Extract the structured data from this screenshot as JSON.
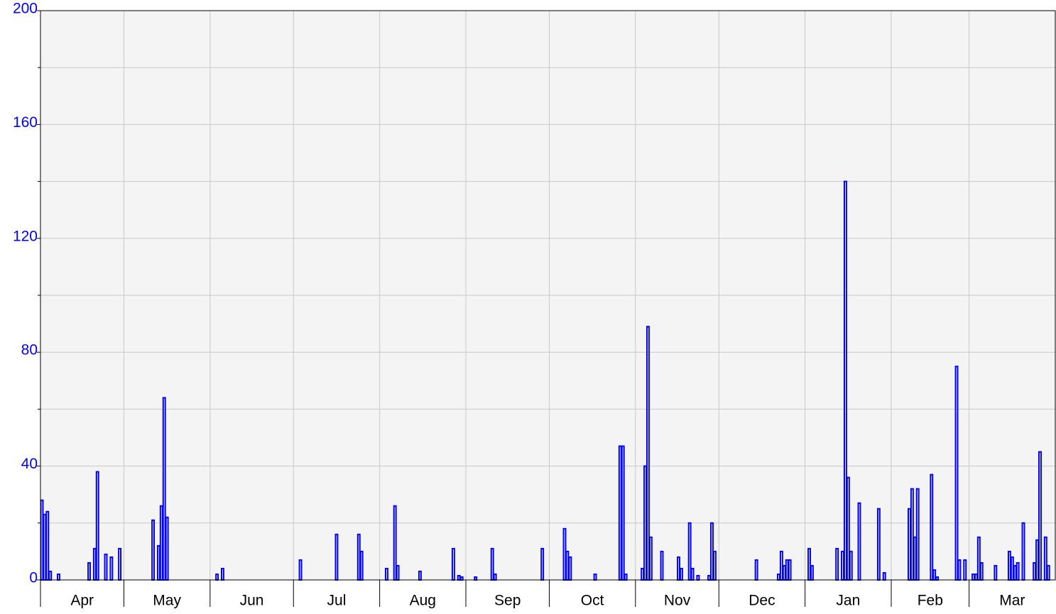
{
  "chart_data": {
    "type": "bar",
    "color": "#0000ff",
    "grid": true,
    "categories": [
      "Apr",
      "May",
      "Jun",
      "Jul",
      "Aug",
      "Sep",
      "Oct",
      "Nov",
      "Dec",
      "Jan",
      "Feb",
      "Mar"
    ],
    "values": [
      [
        28,
        23,
        24,
        3,
        0,
        0,
        2,
        0,
        0,
        0,
        0,
        0,
        0,
        0,
        0,
        0,
        0,
        6,
        0,
        11,
        38,
        0,
        0,
        9,
        0,
        8,
        0,
        0,
        11,
        0
      ],
      [
        0,
        0,
        0,
        0,
        0,
        0,
        0,
        0,
        0,
        0,
        21,
        0,
        12,
        26,
        64,
        22,
        0,
        0,
        0,
        0,
        0,
        0,
        0,
        0,
        0,
        0,
        0,
        0,
        0,
        0,
        0
      ],
      [
        0,
        0,
        2,
        0,
        4,
        0,
        0,
        0,
        0,
        0,
        0,
        0,
        0,
        0,
        0,
        0,
        0,
        0,
        0,
        0,
        0,
        0,
        0,
        0,
        0,
        0,
        0,
        0,
        0,
        0
      ],
      [
        0,
        0,
        7,
        0,
        0,
        0,
        0,
        0,
        0,
        0,
        0,
        0,
        0,
        0,
        0,
        16,
        0,
        0,
        0,
        0,
        0,
        0,
        0,
        16,
        10,
        0,
        0,
        0,
        0,
        0,
        0
      ],
      [
        0,
        0,
        4,
        0,
        0,
        26,
        5,
        0,
        0,
        0,
        0,
        0,
        0,
        0,
        3,
        0,
        0,
        0,
        0,
        0,
        0,
        0,
        0,
        0,
        0,
        0,
        11,
        0,
        1.5,
        1,
        0
      ],
      [
        0,
        0,
        0,
        1,
        0,
        0,
        0,
        0,
        0,
        11,
        2,
        0,
        0,
        0,
        0,
        0,
        0,
        0,
        0,
        0,
        0,
        0,
        0,
        0,
        0,
        0,
        0,
        11,
        0,
        0
      ],
      [
        0,
        0,
        0,
        0,
        0,
        18,
        10,
        8,
        0,
        0,
        0,
        0,
        0,
        0,
        0,
        0,
        2,
        0,
        0,
        0,
        0,
        0,
        0,
        0,
        0,
        47,
        47,
        2,
        0,
        0,
        0
      ],
      [
        0,
        0,
        4,
        40,
        89,
        15,
        0,
        0,
        0,
        10,
        0,
        0,
        0,
        0,
        0,
        8,
        4,
        0,
        0,
        20,
        4,
        0,
        1.5,
        0,
        0,
        0,
        1.5,
        20,
        10,
        0
      ],
      [
        0,
        0,
        0,
        0,
        0,
        0,
        0,
        0,
        0,
        0,
        0,
        0,
        0,
        7,
        0,
        0,
        0,
        0,
        0,
        0,
        0,
        2,
        10,
        5,
        7,
        7,
        0,
        0,
        0,
        0,
        0
      ],
      [
        0,
        11,
        5,
        0,
        0,
        0,
        0,
        0,
        0,
        0,
        0,
        11,
        0,
        10,
        140,
        36,
        10,
        0,
        0,
        27,
        0,
        0,
        0,
        0,
        0,
        0,
        25,
        0,
        2.5,
        0,
        0
      ],
      [
        0,
        0,
        0,
        0,
        0,
        0,
        25,
        32,
        15,
        32,
        0,
        0,
        0,
        0,
        37,
        3.5,
        1,
        0,
        0,
        0,
        0,
        0,
        0,
        75,
        7,
        0,
        7,
        0
      ],
      [
        0,
        2,
        2,
        15,
        6,
        0,
        0,
        0,
        0,
        5,
        0,
        0,
        0,
        0,
        10,
        8,
        5,
        6,
        0,
        20,
        0,
        0,
        0,
        6,
        14,
        45,
        0,
        15,
        5,
        0,
        0
      ]
    ],
    "ylim": [
      0,
      200
    ],
    "yticks": [
      0,
      40,
      80,
      120,
      160,
      200
    ],
    "yminorticks": [
      20,
      60,
      100,
      140,
      180
    ]
  }
}
